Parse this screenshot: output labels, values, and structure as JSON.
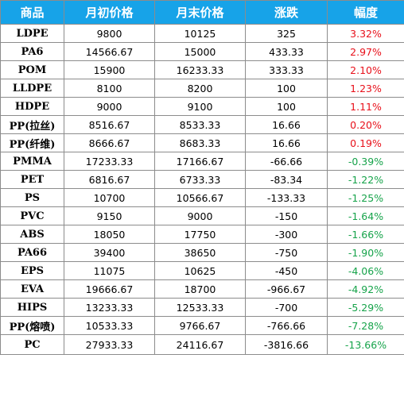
{
  "table": {
    "headers": [
      "商品",
      "月初价格",
      "月末价格",
      "涨跌",
      "幅度"
    ],
    "colors": {
      "header_bg": "#17a3e8",
      "up": "#e8101a",
      "down": "#16a34a"
    },
    "rows": [
      {
        "name": "LDPE",
        "start": "9800",
        "end": "10125",
        "change": "325",
        "pct": "3.32%",
        "dir": "up"
      },
      {
        "name": "PA6",
        "start": "14566.67",
        "end": "15000",
        "change": "433.33",
        "pct": "2.97%",
        "dir": "up"
      },
      {
        "name": "POM",
        "start": "15900",
        "end": "16233.33",
        "change": "333.33",
        "pct": "2.10%",
        "dir": "up"
      },
      {
        "name": "LLDPE",
        "start": "8100",
        "end": "8200",
        "change": "100",
        "pct": "1.23%",
        "dir": "up"
      },
      {
        "name": "HDPE",
        "start": "9000",
        "end": "9100",
        "change": "100",
        "pct": "1.11%",
        "dir": "up"
      },
      {
        "name": "PP(拉丝)",
        "start": "8516.67",
        "end": "8533.33",
        "change": "16.66",
        "pct": "0.20%",
        "dir": "up"
      },
      {
        "name": "PP(纤维)",
        "start": "8666.67",
        "end": "8683.33",
        "change": "16.66",
        "pct": "0.19%",
        "dir": "up"
      },
      {
        "name": "PMMA",
        "start": "17233.33",
        "end": "17166.67",
        "change": "-66.66",
        "pct": "-0.39%",
        "dir": "down"
      },
      {
        "name": "PET",
        "start": "6816.67",
        "end": "6733.33",
        "change": "-83.34",
        "pct": "-1.22%",
        "dir": "down"
      },
      {
        "name": "PS",
        "start": "10700",
        "end": "10566.67",
        "change": "-133.33",
        "pct": "-1.25%",
        "dir": "down"
      },
      {
        "name": "PVC",
        "start": "9150",
        "end": "9000",
        "change": "-150",
        "pct": "-1.64%",
        "dir": "down"
      },
      {
        "name": "ABS",
        "start": "18050",
        "end": "17750",
        "change": "-300",
        "pct": "-1.66%",
        "dir": "down"
      },
      {
        "name": "PA66",
        "start": "39400",
        "end": "38650",
        "change": "-750",
        "pct": "-1.90%",
        "dir": "down"
      },
      {
        "name": "EPS",
        "start": "11075",
        "end": "10625",
        "change": "-450",
        "pct": "-4.06%",
        "dir": "down"
      },
      {
        "name": "EVA",
        "start": "19666.67",
        "end": "18700",
        "change": "-966.67",
        "pct": "-4.92%",
        "dir": "down"
      },
      {
        "name": "HIPS",
        "start": "13233.33",
        "end": "12533.33",
        "change": "-700",
        "pct": "-5.29%",
        "dir": "down"
      },
      {
        "name": "PP(熔喷)",
        "start": "10533.33",
        "end": "9766.67",
        "change": "-766.66",
        "pct": "-7.28%",
        "dir": "down"
      },
      {
        "name": "PC",
        "start": "27933.33",
        "end": "24116.67",
        "change": "-3816.66",
        "pct": "-13.66%",
        "dir": "down"
      }
    ]
  }
}
